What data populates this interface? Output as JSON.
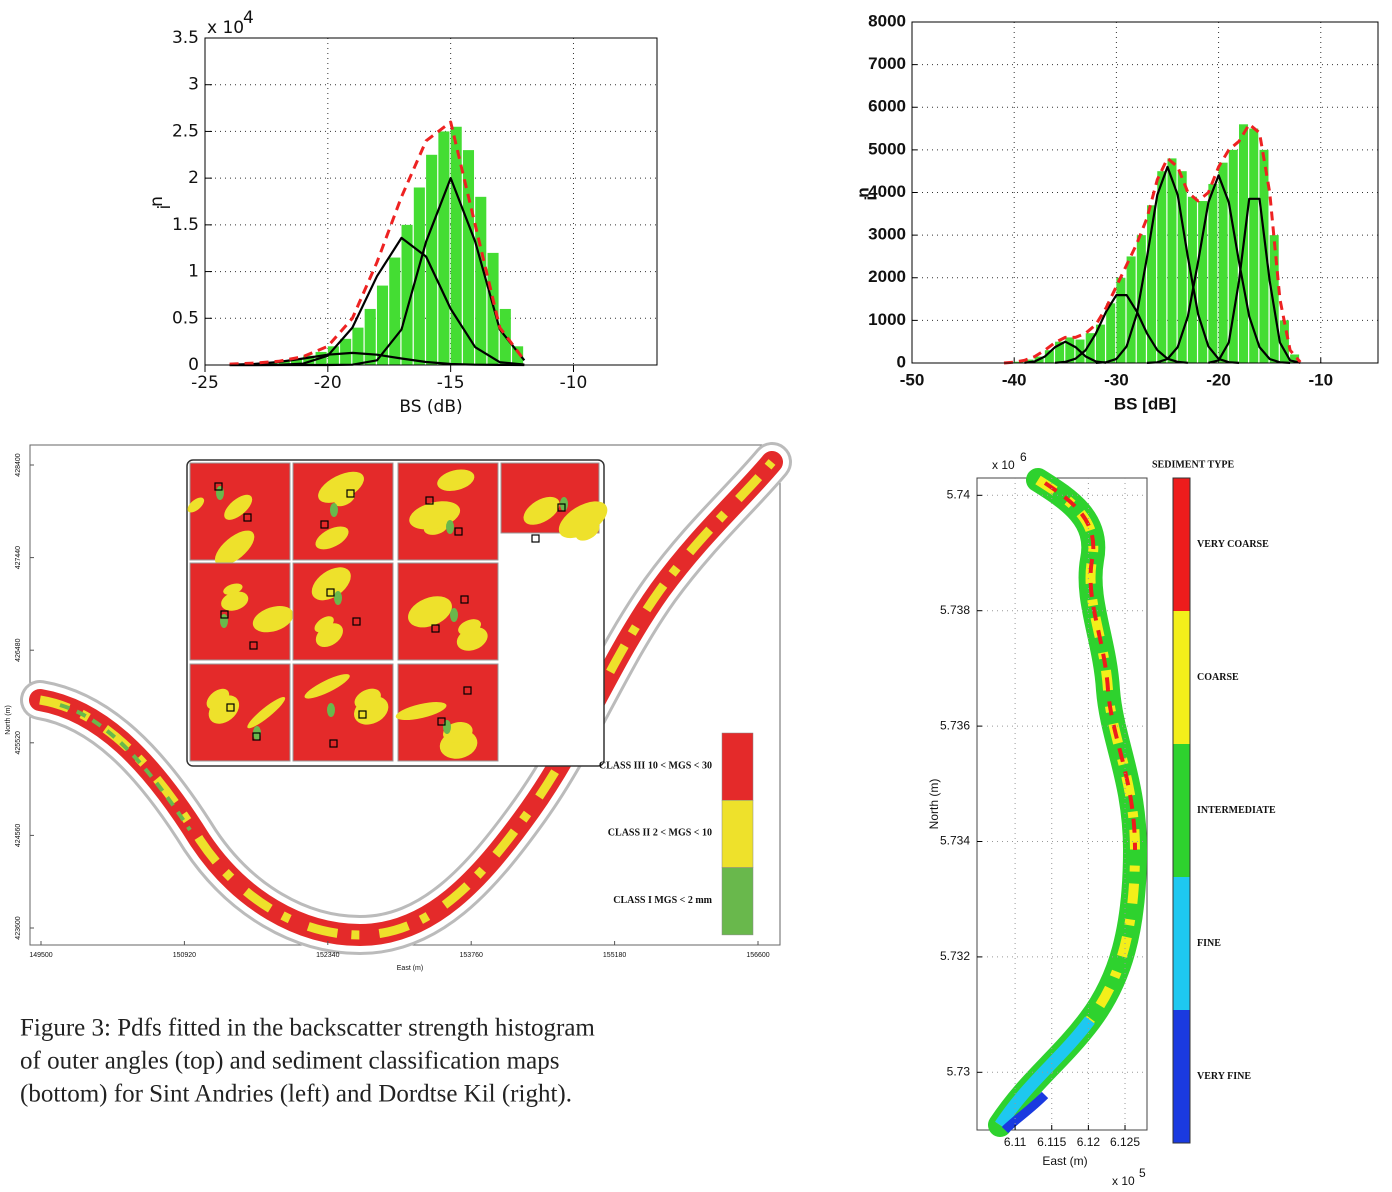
{
  "chart_data": [
    {
      "type": "histogram",
      "xlabel": "BS (dB)",
      "ylabel": "n",
      "ylabel_subscript": "i",
      "y_multiplier": "x 10",
      "y_exponent": "4",
      "xlim": [
        -25,
        -6.6
      ],
      "ylim": [
        0,
        3.5
      ],
      "xticks": [
        -25,
        -20,
        -15,
        -10
      ],
      "yticks": [
        0,
        0.5,
        1,
        1.5,
        2,
        2.5,
        3,
        3.5
      ],
      "grid": true,
      "color": "#44dd33",
      "bins": [
        -23,
        -22.5,
        -22,
        -21.5,
        -21,
        -20.5,
        -20,
        -19.5,
        -19,
        -18.5,
        -18,
        -17.5,
        -17,
        -16.5,
        -16,
        -15.5,
        -15,
        -14.5,
        -14,
        -13.5,
        -13,
        -12.5,
        -12
      ],
      "counts": [
        0.01,
        0.02,
        0.04,
        0.07,
        0.1,
        0.14,
        0.2,
        0.28,
        0.4,
        0.6,
        0.85,
        1.15,
        1.5,
        1.9,
        2.25,
        2.5,
        2.55,
        2.3,
        1.8,
        1.2,
        0.6,
        0.2
      ],
      "series": [
        {
          "color": "#000000",
          "dashed": false,
          "x": [
            -24,
            -23,
            -22,
            -21,
            -20,
            -19,
            -18,
            -17,
            -16,
            -15,
            -14,
            -13,
            -12
          ],
          "values": [
            0.003,
            0.011,
            0.032,
            0.07,
            0.11,
            0.13,
            0.11,
            0.07,
            0.032,
            0.011,
            0.003,
            0.001,
            0
          ]
        },
        {
          "color": "#000000",
          "dashed": false,
          "x": [
            -24,
            -23,
            -22,
            -21,
            -20,
            -19,
            -18,
            -17,
            -16,
            -15,
            -14,
            -13,
            -12
          ],
          "values": [
            0,
            0,
            0.001,
            0.015,
            0.1,
            0.4,
            0.95,
            1.36,
            1.16,
            0.6,
            0.19,
            0.03,
            0.004
          ]
        },
        {
          "color": "#000000",
          "dashed": false,
          "x": [
            -24,
            -23,
            -22,
            -21,
            -20,
            -19,
            -18,
            -17,
            -16,
            -15,
            -14,
            -13,
            -12
          ],
          "values": [
            0,
            0,
            0,
            0,
            0,
            0.003,
            0.05,
            0.38,
            1.32,
            2.0,
            1.32,
            0.38,
            0.05
          ]
        },
        {
          "color": "#ee2222",
          "dashed": true,
          "x": [
            -24,
            -23,
            -22,
            -21,
            -20,
            -19,
            -18,
            -17,
            -16,
            -15,
            -14,
            -13,
            -12
          ],
          "values": [
            0.01,
            0.02,
            0.04,
            0.09,
            0.2,
            0.5,
            1.1,
            1.8,
            2.4,
            2.6,
            1.5,
            0.4,
            0.05
          ]
        }
      ]
    },
    {
      "type": "histogram",
      "xlabel": "BS [dB]",
      "ylabel": "n",
      "ylabel_subscript": "i",
      "xlim": [
        -50,
        -4.4
      ],
      "ylim": [
        0,
        8000
      ],
      "xticks": [
        -50,
        -40,
        -30,
        -20,
        -10
      ],
      "yticks": [
        0,
        1000,
        2000,
        3000,
        4000,
        5000,
        6000,
        7000,
        8000
      ],
      "grid": true,
      "color": "#44dd33",
      "bins": [
        -41,
        -40,
        -39,
        -38,
        -37,
        -36,
        -35,
        -34,
        -33,
        -32,
        -31,
        -30,
        -29,
        -28,
        -27,
        -26,
        -25,
        -24,
        -23,
        -22,
        -21,
        -20,
        -19,
        -18,
        -17,
        -16,
        -15,
        -14,
        -13,
        -12
      ],
      "counts": [
        10,
        30,
        80,
        150,
        300,
        500,
        600,
        550,
        700,
        900,
        1400,
        2000,
        2500,
        3000,
        3700,
        4500,
        4800,
        4500,
        3900,
        3800,
        4200,
        4700,
        5000,
        5600,
        5500,
        5000,
        3000,
        1000,
        200
      ],
      "series": [
        {
          "color": "#000000",
          "dashed": false,
          "x": [
            -39,
            -38,
            -37,
            -36,
            -35,
            -34,
            -33,
            -32,
            -31
          ],
          "values": [
            4,
            35,
            153,
            372,
            500,
            372,
            153,
            35,
            4
          ]
        },
        {
          "color": "#000000",
          "dashed": false,
          "x": [
            -36,
            -35,
            -34,
            -33,
            -32,
            -31,
            -30,
            -29,
            -28,
            -27,
            -26,
            -25,
            -24,
            -23
          ],
          "values": [
            5,
            25,
            100,
            302,
            694,
            1208,
            1594,
            1594,
            1208,
            694,
            302,
            100,
            25,
            5
          ]
        },
        {
          "color": "#000000",
          "dashed": false,
          "x": [
            -32,
            -31,
            -30,
            -29,
            -28,
            -27,
            -26,
            -25,
            -24,
            -23,
            -22,
            -21,
            -20,
            -19,
            -18
          ],
          "values": [
            2,
            18,
            97,
            389,
            1146,
            2483,
            3943,
            4600,
            3943,
            2483,
            1146,
            389,
            97,
            18,
            2
          ]
        },
        {
          "color": "#000000",
          "dashed": false,
          "x": [
            -27,
            -26,
            -25,
            -24,
            -23,
            -22,
            -21,
            -20,
            -19,
            -18,
            -17,
            -16,
            -15,
            -14,
            -13
          ],
          "values": [
            2,
            17,
            93,
            372,
            1096,
            2375,
            3771,
            4400,
            3771,
            2375,
            1096,
            372,
            93,
            17,
            2
          ]
        },
        {
          "color": "#000000",
          "dashed": false,
          "x": [
            -21,
            -20,
            -19,
            -18,
            -17,
            -16,
            -15,
            -14,
            -13,
            -12
          ],
          "values": [
            4,
            60,
            480,
            1923,
            3852,
            3852,
            1923,
            480,
            60,
            4
          ]
        },
        {
          "color": "#ee2222",
          "dashed": true,
          "x": [
            -41,
            -40,
            -39,
            -38,
            -37,
            -36,
            -35,
            -34,
            -33,
            -32,
            -31,
            -30,
            -29,
            -28,
            -27,
            -26,
            -25,
            -24,
            -23,
            -22,
            -21,
            -20,
            -19,
            -18,
            -17,
            -16,
            -15,
            -14,
            -13,
            -12
          ],
          "values": [
            0,
            20,
            60,
            150,
            300,
            480,
            600,
            600,
            700,
            900,
            1300,
            1800,
            2300,
            2800,
            3400,
            4300,
            4800,
            4600,
            4000,
            3800,
            4000,
            4600,
            5000,
            5200,
            5600,
            5400,
            4000,
            1500,
            300,
            20
          ]
        }
      ]
    }
  ],
  "maps": [
    {
      "xlabel": "East (m)",
      "ylabel": "North (m)",
      "xlim": [
        149500,
        156600
      ],
      "ylim": [
        423600,
        428400
      ],
      "xticks": [
        149500,
        150920,
        152340,
        153760,
        155180,
        156600
      ],
      "yticks": [
        423600,
        424560,
        425520,
        426480,
        427440,
        428400
      ],
      "classes": [
        {
          "label": "CLASS III   10 < MGS < 30",
          "color": "#e42a2a"
        },
        {
          "label": "CLASS II   2 < MGS < 10",
          "color": "#eee12b"
        },
        {
          "label": "CLASS I   MGS < 2 mm",
          "color": "#69b84c"
        }
      ]
    },
    {
      "title": "SEDIMENT TYPE",
      "xlabel": "East (m)",
      "ylabel": "North (m)",
      "x_multiplier": "x 10",
      "x_exponent": "5",
      "y_multiplier": "x 10",
      "y_exponent": "6",
      "xlim": [
        6.1048,
        6.128
      ],
      "ylim": [
        5.729,
        5.7403
      ],
      "xticks": [
        6.11,
        6.115,
        6.12,
        6.125
      ],
      "yticks": [
        5.73,
        5.732,
        5.734,
        5.736,
        5.738,
        5.74
      ],
      "classes": [
        {
          "label": "VERY COARSE",
          "color": "#ee1c1c"
        },
        {
          "label": "COARSE",
          "color": "#f3ef1a"
        },
        {
          "label": "INTERMEDIATE",
          "color": "#2ed22e"
        },
        {
          "label": "FINE",
          "color": "#1ec8f0"
        },
        {
          "label": "VERY FINE",
          "color": "#1a3ae0"
        }
      ]
    }
  ],
  "caption": [
    "Figure 3: Pdfs fitted in the backscatter strength histogram",
    "of outer angles (top) and sediment classification maps",
    "(bottom) for Sint Andries (left) and Dordtse Kil (right)."
  ]
}
